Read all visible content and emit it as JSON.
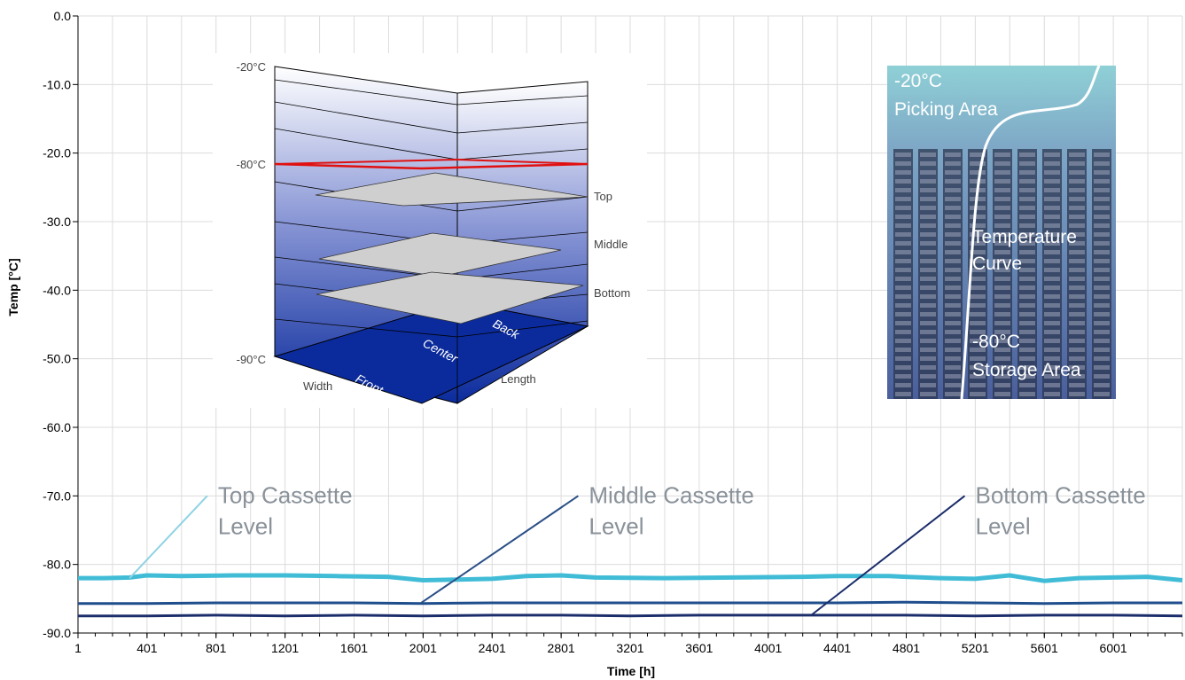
{
  "chart_data": {
    "type": "line",
    "xlabel": "Time [h]",
    "ylabel": "Temp [°C]",
    "xlim": [
      1,
      6401
    ],
    "ylim": [
      -90.0,
      0.0
    ],
    "x_ticks": [
      1,
      401,
      801,
      1201,
      1601,
      2001,
      2401,
      2801,
      3201,
      3601,
      4001,
      4401,
      4801,
      5201,
      5601,
      6001
    ],
    "x_tick_labels": [
      "1",
      "401",
      "801",
      "1201",
      "1601",
      "2001",
      "2401",
      "2801",
      "3201",
      "3601",
      "4001",
      "4401",
      "4801",
      "5201",
      "5601",
      "6001"
    ],
    "y_ticks": [
      0,
      -10,
      -20,
      -30,
      -40,
      -50,
      -60,
      -70,
      -80,
      -90
    ],
    "y_tick_labels": [
      "0.0",
      "-10.0",
      "-20.0",
      "-30.0",
      "-40.0",
      "-50.0",
      "-60.0",
      "-70.0",
      "-80.0",
      "-90.0"
    ],
    "grid": true,
    "series": [
      {
        "name": "Top Cassette Level",
        "color": "#41bcd6",
        "x": [
          1,
          150,
          300,
          400,
          600,
          900,
          1200,
          1500,
          1800,
          2000,
          2200,
          2400,
          2600,
          2800,
          3000,
          3400,
          3800,
          4200,
          4400,
          4700,
          5000,
          5200,
          5400,
          5600,
          5800,
          6000,
          6200,
          6401
        ],
        "values": [
          -82.0,
          -82.0,
          -81.9,
          -81.6,
          -81.7,
          -81.6,
          -81.6,
          -81.7,
          -81.8,
          -82.3,
          -82.2,
          -82.1,
          -81.7,
          -81.6,
          -81.9,
          -82.0,
          -81.9,
          -81.8,
          -81.7,
          -81.7,
          -82.0,
          -82.1,
          -81.6,
          -82.4,
          -82.0,
          -81.9,
          -81.8,
          -82.3
        ]
      },
      {
        "name": "Middle Cassette Level",
        "color": "#1f4e8c",
        "x": [
          1,
          400,
          800,
          1200,
          1600,
          2000,
          2400,
          2800,
          3200,
          3600,
          4000,
          4400,
          4800,
          5200,
          5600,
          6000,
          6401
        ],
        "values": [
          -85.7,
          -85.7,
          -85.6,
          -85.6,
          -85.6,
          -85.7,
          -85.6,
          -85.6,
          -85.6,
          -85.6,
          -85.6,
          -85.6,
          -85.5,
          -85.6,
          -85.7,
          -85.6,
          -85.6
        ]
      },
      {
        "name": "Bottom Cassette Level",
        "color": "#1b2d6b",
        "x": [
          1,
          400,
          800,
          1200,
          1600,
          2000,
          2400,
          2800,
          3200,
          3600,
          4000,
          4400,
          4800,
          5200,
          5600,
          6000,
          6401
        ],
        "values": [
          -87.5,
          -87.5,
          -87.4,
          -87.5,
          -87.4,
          -87.5,
          -87.4,
          -87.4,
          -87.5,
          -87.4,
          -87.4,
          -87.4,
          -87.4,
          -87.5,
          -87.4,
          -87.4,
          -87.5
        ]
      }
    ],
    "annotations": [
      {
        "lines": [
          "Top Cassette",
          "Level"
        ],
        "color": "#8fd3e4",
        "from": [
          300,
          -82.0
        ],
        "to": [
          750,
          -70.0
        ]
      },
      {
        "lines": [
          "Middle Cassette",
          "Level"
        ],
        "color": "#2a4f86",
        "from": [
          1990,
          -85.6
        ],
        "to": [
          2900,
          -70.0
        ]
      },
      {
        "lines": [
          "Bottom Cassette",
          "Level"
        ],
        "color": "#1b2d6b",
        "from": [
          4250,
          -87.4
        ],
        "to": [
          5140,
          -70.0
        ]
      }
    ]
  },
  "inset_3d": {
    "temps": [
      "-20°C",
      "-80°C",
      "-90°C"
    ],
    "levels": [
      "Top",
      "Middle",
      "Bottom"
    ],
    "axes": [
      "Width",
      "Length"
    ],
    "positions": [
      "Front",
      "Center",
      "Back"
    ]
  },
  "inset_photo": {
    "top_temp": "-20°C",
    "top_label": "Picking Area",
    "curve_label_1": "Temperature",
    "curve_label_2": "Curve",
    "bottom_temp": "-80°C",
    "bottom_label": "Storage Area",
    "colors": {
      "top": "#8fd0d6",
      "bottom": "#4a5f9c",
      "curve": "#ffffff"
    }
  }
}
